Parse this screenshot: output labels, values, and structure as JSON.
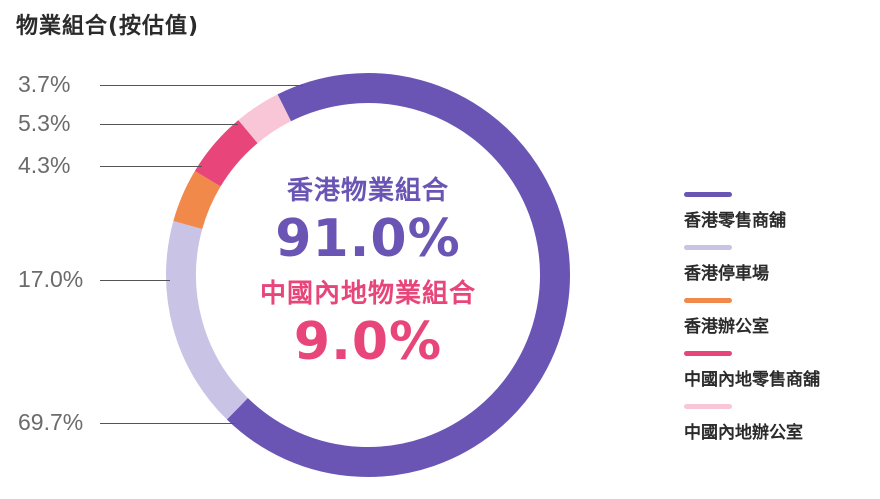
{
  "title": "物業組合(按估值)",
  "center": {
    "hk_title": "香港物業組合",
    "hk_pct": "91.0%",
    "cn_title": "中國內地物業組合",
    "cn_pct": "9.0%",
    "hk_color": "#6a55b5",
    "cn_color": "#e8457a"
  },
  "chart_data": {
    "type": "pie",
    "variant": "donut",
    "categories": [
      "香港零售商舖",
      "香港停車場",
      "香港辦公室",
      "中國內地零售商舖",
      "中國內地辦公室"
    ],
    "values": [
      69.7,
      17.0,
      4.3,
      5.3,
      3.7
    ],
    "labels": [
      "69.7%",
      "17.0%",
      "4.3%",
      "5.3%",
      "3.7%"
    ],
    "colors": [
      "#6a55b5",
      "#c9c3e6",
      "#f0894a",
      "#e8457a",
      "#f8c6d6"
    ],
    "legend_position": "right"
  }
}
